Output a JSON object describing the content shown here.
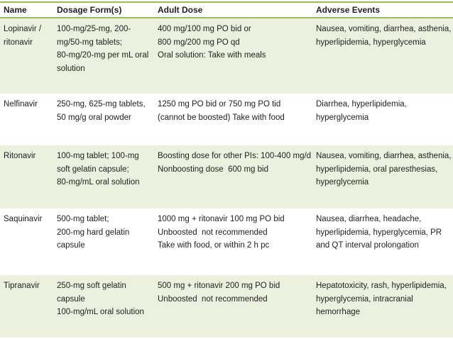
{
  "table": {
    "headers": [
      "Name",
      "Dosage Form(s)",
      "Adult Dose",
      "Adverse Events"
    ],
    "rows": [
      {
        "name": [
          "Lopinavir /",
          "ritonavir"
        ],
        "dosage_forms": [
          "100-mg/25-mg, 200-",
          "mg/50-mg tablets;",
          "80-mg/20-mg per mL oral",
          "solution"
        ],
        "adult_dose": [
          "400 mg/100 mg PO bid or",
          "800 mg/200 mg PO qd",
          "Oral solution: Take with meals"
        ],
        "adverse_events": [
          "Nausea, vomiting, diarrhea, asthenia,",
          "hyperlipidemia, hyperglycemia"
        ]
      },
      {
        "name": [
          "Nelfinavir"
        ],
        "dosage_forms": [
          "250-mg, 625-mg tablets,",
          "50 mg/g oral powder"
        ],
        "adult_dose": [
          "1250 mg PO bid or 750 mg PO tid",
          "(cannot be boosted) Take with food"
        ],
        "adverse_events": [
          "Diarrhea, hyperlipidemia,",
          "hyperglycemia"
        ]
      },
      {
        "name": [
          "Ritonavir"
        ],
        "dosage_forms": [
          "100-mg tablet; 100-mg",
          "soft gelatin capsule;",
          "80-mg/mL oral solution"
        ],
        "adult_dose": [
          "Boosting dose for other PIs: 100-400 mg/d",
          "Nonboosting dose  600 mg bid"
        ],
        "adverse_events": [
          "Nausea, vomiting, diarrhea, asthenia,",
          "hyperlipidemia, oral paresthesias,",
          "hyperglycemia"
        ]
      },
      {
        "name": [
          "Saquinavir"
        ],
        "dosage_forms": [
          "500-mg tablet;",
          "200-mg hard gelatin",
          "capsule"
        ],
        "adult_dose": [
          "1000 mg + ritonavir 100 mg PO bid",
          "Unboosted  not recommended",
          "Take with food, or within 2 h pc"
        ],
        "adverse_events": [
          "Nausea, diarrhea, headache,",
          "hyperlipidemia, hyperglycemia, PR",
          "and QT interval prolongation"
        ]
      },
      {
        "name": [
          "Tipranavir"
        ],
        "dosage_forms": [
          "250-mg soft gelatin",
          "capsule",
          "100-mg/mL oral solution"
        ],
        "adult_dose": [
          "500 mg + ritonavir 200 mg PO bid",
          "Unboosted  not recommended"
        ],
        "adverse_events": [
          "Hepatotoxicity, rash, hyperlipidemia,",
          "hyperglycemia, intracranial",
          "hemorrhage"
        ]
      }
    ]
  },
  "colors": {
    "accent_border": "#9bbb59",
    "band_fill": "#ebf1de",
    "text": "#1f1f1f"
  }
}
